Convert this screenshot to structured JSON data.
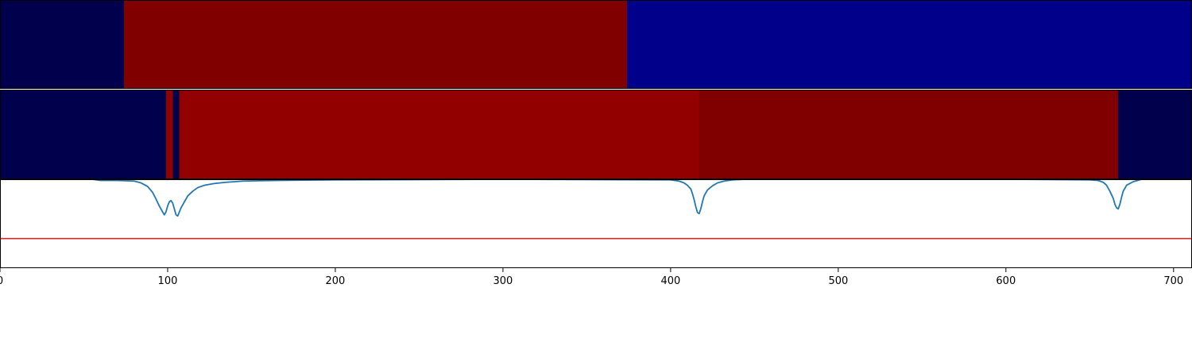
{
  "chart_data": {
    "type": "heatmap",
    "xlim": [
      0,
      711
    ],
    "x_ticks": [
      0,
      100,
      200,
      300,
      400,
      500,
      600,
      700
    ],
    "x_tick_labels": [
      "0",
      "100",
      "200",
      "300",
      "400",
      "500",
      "600",
      "700"
    ],
    "segment_rows": [
      {
        "segments": [
          {
            "start": 0,
            "end": 74,
            "color": "#00004c"
          },
          {
            "start": 74,
            "end": 374,
            "color": "#800000"
          },
          {
            "start": 374,
            "end": 711,
            "color": "#00008b"
          }
        ]
      },
      {
        "segments": [
          {
            "start": 0,
            "end": 99,
            "color": "#00004c"
          },
          {
            "start": 99,
            "end": 103,
            "color": "#920000"
          },
          {
            "start": 103,
            "end": 107,
            "color": "#00004c"
          },
          {
            "start": 107,
            "end": 417,
            "color": "#920000"
          },
          {
            "start": 417,
            "end": 667,
            "color": "#800000"
          },
          {
            "start": 667,
            "end": 711,
            "color": "#00004c"
          }
        ]
      }
    ],
    "line_series": {
      "color": "#1f77b4",
      "x": [
        21,
        55,
        60,
        70,
        80,
        84,
        88,
        91,
        93,
        95,
        97,
        98,
        99,
        100,
        101,
        102,
        103,
        104,
        105,
        106,
        107,
        108,
        110,
        112,
        115,
        118,
        122,
        128,
        135,
        145,
        165,
        200,
        300,
        400,
        405,
        408,
        410,
        412,
        413,
        414,
        415,
        416,
        417,
        418,
        419,
        420,
        422,
        425,
        428,
        432,
        437,
        445,
        455,
        500,
        600,
        650,
        655,
        658,
        660,
        662,
        664,
        665,
        666,
        667,
        668,
        669,
        670,
        672,
        676,
        681
      ],
      "y": [
        0.0,
        0.0,
        -0.02,
        -0.02,
        -0.03,
        -0.06,
        -0.12,
        -0.22,
        -0.33,
        -0.45,
        -0.55,
        -0.6,
        -0.55,
        -0.45,
        -0.38,
        -0.36,
        -0.4,
        -0.5,
        -0.6,
        -0.62,
        -0.55,
        -0.48,
        -0.38,
        -0.28,
        -0.2,
        -0.14,
        -0.1,
        -0.07,
        -0.05,
        -0.03,
        -0.02,
        -0.01,
        0.0,
        -0.01,
        -0.03,
        -0.06,
        -0.1,
        -0.16,
        -0.24,
        -0.34,
        -0.46,
        -0.56,
        -0.58,
        -0.5,
        -0.38,
        -0.28,
        -0.18,
        -0.11,
        -0.06,
        -0.03,
        -0.01,
        0.0,
        0.0,
        0.0,
        0.0,
        -0.01,
        -0.02,
        -0.05,
        -0.1,
        -0.2,
        -0.32,
        -0.42,
        -0.48,
        -0.5,
        -0.42,
        -0.3,
        -0.2,
        -0.1,
        -0.04,
        0.0
      ]
    },
    "hline": {
      "y": -1.0,
      "color": "#d62728"
    },
    "line_ylim": [
      -1.5,
      0.0
    ],
    "grid": false
  }
}
